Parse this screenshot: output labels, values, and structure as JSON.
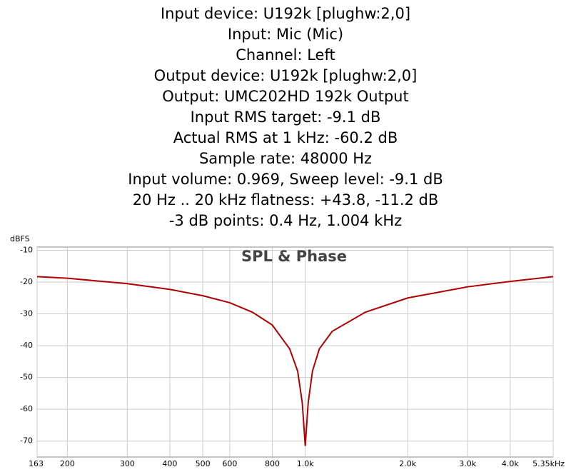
{
  "header": {
    "lines": [
      "Input device: U192k [plughw:2,0]",
      "Input: Mic (Mic)",
      "Channel: Left",
      "Output device: U192k [plughw:2,0]",
      "Output: UMC202HD 192k Output",
      "Input RMS target: -9.1 dB",
      "Actual RMS at 1 kHz: -60.2 dB",
      "Sample rate: 48000 Hz",
      "Input volume: 0.969, Sweep level: -9.1 dB",
      "20 Hz .. 20 kHz flatness: +43.8, -11.2 dB",
      "-3 dB points: 0.4 Hz, 1.004 kHz"
    ]
  },
  "chart_data": {
    "type": "line",
    "title": "SPL & Phase",
    "y_label": "dBFS",
    "x_scale": "log",
    "grid": true,
    "xlim": [
      163,
      5350
    ],
    "ylim": [
      -75,
      -9
    ],
    "xticks": [
      163,
      200,
      300,
      400,
      500,
      600,
      800,
      {
        "value": 1000,
        "label": "1.0k"
      },
      {
        "value": 2000,
        "label": "2.0k"
      },
      {
        "value": 3000,
        "label": "3.0k"
      },
      {
        "value": 4000,
        "label": "4.0k"
      },
      {
        "value": 5350,
        "label": "5.35kHz"
      }
    ],
    "yticks": [
      -10,
      -20,
      -30,
      -40,
      -50,
      -60,
      -70
    ],
    "x": [
      163,
      200,
      300,
      400,
      500,
      600,
      700,
      800,
      900,
      950,
      980,
      1000,
      1020,
      1050,
      1100,
      1200,
      1500,
      2000,
      3000,
      4000,
      5350
    ],
    "series": [
      {
        "name": "SPL",
        "color": "#b00000",
        "values": [
          -18.3,
          -18.8,
          -20.5,
          -22.3,
          -24.3,
          -26.5,
          -29.5,
          -33.5,
          -41,
          -48,
          -58,
          -71.5,
          -58,
          -48,
          -41,
          -35.5,
          -29.5,
          -25,
          -21.5,
          -19.8,
          -18.3
        ]
      }
    ]
  }
}
